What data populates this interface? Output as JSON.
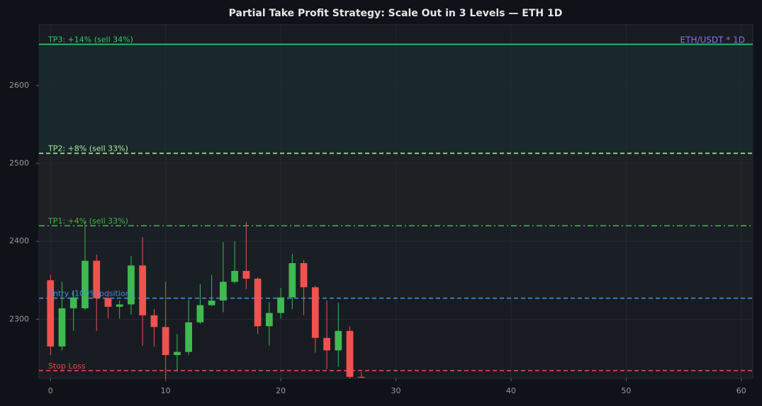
{
  "chart_data": {
    "type": "candlestick",
    "title": "Partial Take Profit Strategy: Scale Out in 3 Levels — ETH 1D",
    "annotation": "ETH/USDT * 1D",
    "x": [
      0,
      1,
      2,
      3,
      4,
      5,
      6,
      7,
      8,
      9,
      10,
      11,
      12,
      13,
      14,
      15,
      16,
      17,
      18,
      19,
      20,
      21,
      22,
      23,
      24,
      25,
      26,
      27
    ],
    "open": [
      2350,
      2265,
      2314,
      2314,
      2375,
      2327,
      2316,
      2319,
      2369,
      2305,
      2290,
      2254,
      2258,
      2296,
      2318,
      2324,
      2348,
      2362,
      2352,
      2291,
      2308,
      2328,
      2372,
      2341,
      2276,
      2260,
      2285,
      2226
    ],
    "high": [
      2357,
      2348,
      2337,
      2425,
      2383,
      2337,
      2324,
      2381,
      2405,
      2313,
      2348,
      2281,
      2325,
      2345,
      2357,
      2399,
      2400,
      2425,
      2354,
      2322,
      2340,
      2384,
      2376,
      2343,
      2324,
      2321,
      2291,
      2232
    ],
    "low": [
      2254,
      2260,
      2285,
      2312,
      2285,
      2301,
      2301,
      2306,
      2266,
      2265,
      2224,
      2234,
      2254,
      2294,
      2317,
      2309,
      2346,
      2339,
      2281,
      2266,
      2301,
      2313,
      2305,
      2257,
      2236,
      2239,
      2220,
      2225
    ],
    "close": [
      2265,
      2314,
      2328,
      2375,
      2327,
      2316,
      2319,
      2369,
      2305,
      2290,
      2254,
      2258,
      2296,
      2318,
      2324,
      2348,
      2362,
      2352,
      2291,
      2308,
      2328,
      2372,
      2341,
      2276,
      2260,
      2285,
      2226,
      2225
    ],
    "up_color": "#3fb950",
    "down_color": "#f0524f",
    "levels": [
      {
        "name": "TP3: +14% (sell 34%)",
        "value": 2653,
        "color": "#2ecc71",
        "style": "solid"
      },
      {
        "name": "TP2: +8% (sell 33%)",
        "value": 2513,
        "color": "#a8e6a1",
        "style": "dashed"
      },
      {
        "name": "TP1: +4% (sell 33%)",
        "value": 2420,
        "color": "#3cb043",
        "style": "dashdot"
      },
      {
        "name": "Entry (100% position)",
        "value": 2327,
        "color": "#3d8fe0",
        "style": "dashed"
      },
      {
        "name": "Stop Loss",
        "value": 2234,
        "color": "#e5484d",
        "style": "dashed"
      }
    ],
    "xlim": [
      -1,
      61
    ],
    "ylim": [
      2224,
      2678
    ],
    "xticks": [
      0,
      10,
      20,
      30,
      40,
      50,
      60
    ],
    "yticks": [
      2300,
      2400,
      2500,
      2600
    ],
    "grid": true
  }
}
